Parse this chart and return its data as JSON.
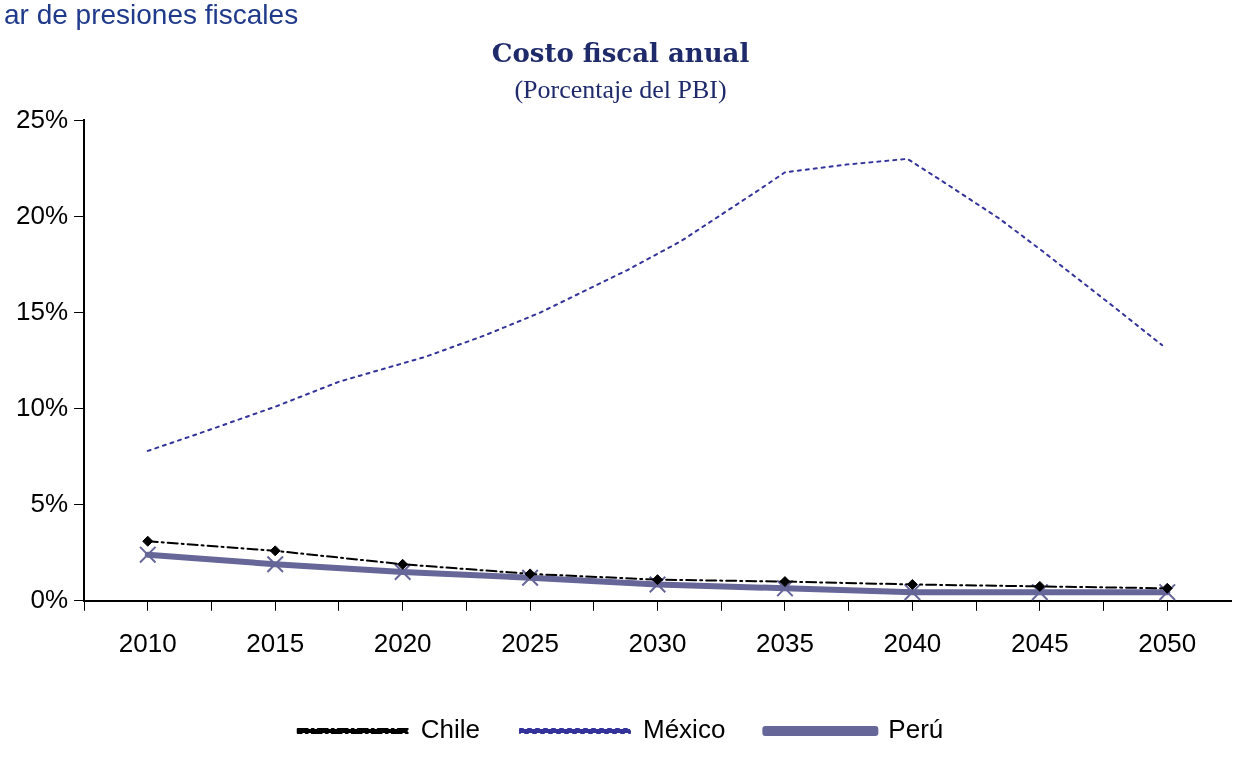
{
  "chart_data": {
    "type": "line",
    "title": "Costo fiscal anual",
    "subtitle": "(Porcentaje del PBI)",
    "annotations": [
      "ar de presiones fiscales"
    ],
    "x": [
      2010,
      2015,
      2020,
      2025,
      2030,
      2035,
      2040,
      2045,
      2050
    ],
    "series": [
      {
        "name": "Chile",
        "color": "#000000",
        "values": [
          3.1,
          2.6,
          1.9,
          1.4,
          1.1,
          1.0,
          0.85,
          0.75,
          0.65
        ],
        "marker": "diamond",
        "line_style": "dashed"
      },
      {
        "name": "México",
        "color": "#333399",
        "x": [
          2010,
          2012,
          2015,
          2017.5,
          2020.9,
          2023.2,
          2025.4,
          2028.8,
          2030.9,
          2034,
          2035,
          2037.4,
          2039.8,
          2041.1,
          2043.4,
          2045.1,
          2047.9,
          2049.8
        ],
        "values": [
          7.8,
          8.7,
          10.1,
          11.4,
          12.7,
          13.8,
          15.0,
          17.2,
          18.7,
          21.4,
          22.3,
          22.7,
          23.0,
          21.9,
          19.9,
          18.2,
          15.3,
          13.3
        ],
        "marker": "none",
        "line_style": "dotted"
      },
      {
        "name": "Perú",
        "color": "#666699",
        "values": [
          2.4,
          1.9,
          1.5,
          1.2,
          0.85,
          0.65,
          0.45,
          0.45,
          0.45
        ],
        "marker": "cross",
        "line_style": "solid"
      }
    ],
    "xlim": [
      2007.5,
      2052.5
    ],
    "xticks": [
      {
        "value": 2007.5,
        "label": null
      },
      2010,
      {
        "value": 2012.5,
        "label": null
      },
      2015,
      {
        "value": 2017.5,
        "label": null
      },
      2020,
      {
        "value": 2022.5,
        "label": null
      },
      2025,
      {
        "value": 2027.5,
        "label": null
      },
      2030,
      {
        "value": 2032.5,
        "label": null
      },
      2035,
      {
        "value": 2037.5,
        "label": null
      },
      2040,
      {
        "value": 2042.5,
        "label": null
      },
      2045,
      {
        "value": 2047.5,
        "label": null
      },
      2050
    ],
    "ylim": [
      0,
      25
    ],
    "yticks": [
      {
        "value": 0,
        "label": "0%"
      },
      {
        "value": 5,
        "label": "5%"
      },
      {
        "value": 10,
        "label": "10%"
      },
      {
        "value": 15,
        "label": "15%"
      },
      {
        "value": 20,
        "label": "20%"
      },
      {
        "value": 25,
        "label": "25%"
      }
    ],
    "grid": false,
    "legend": "bottom"
  }
}
